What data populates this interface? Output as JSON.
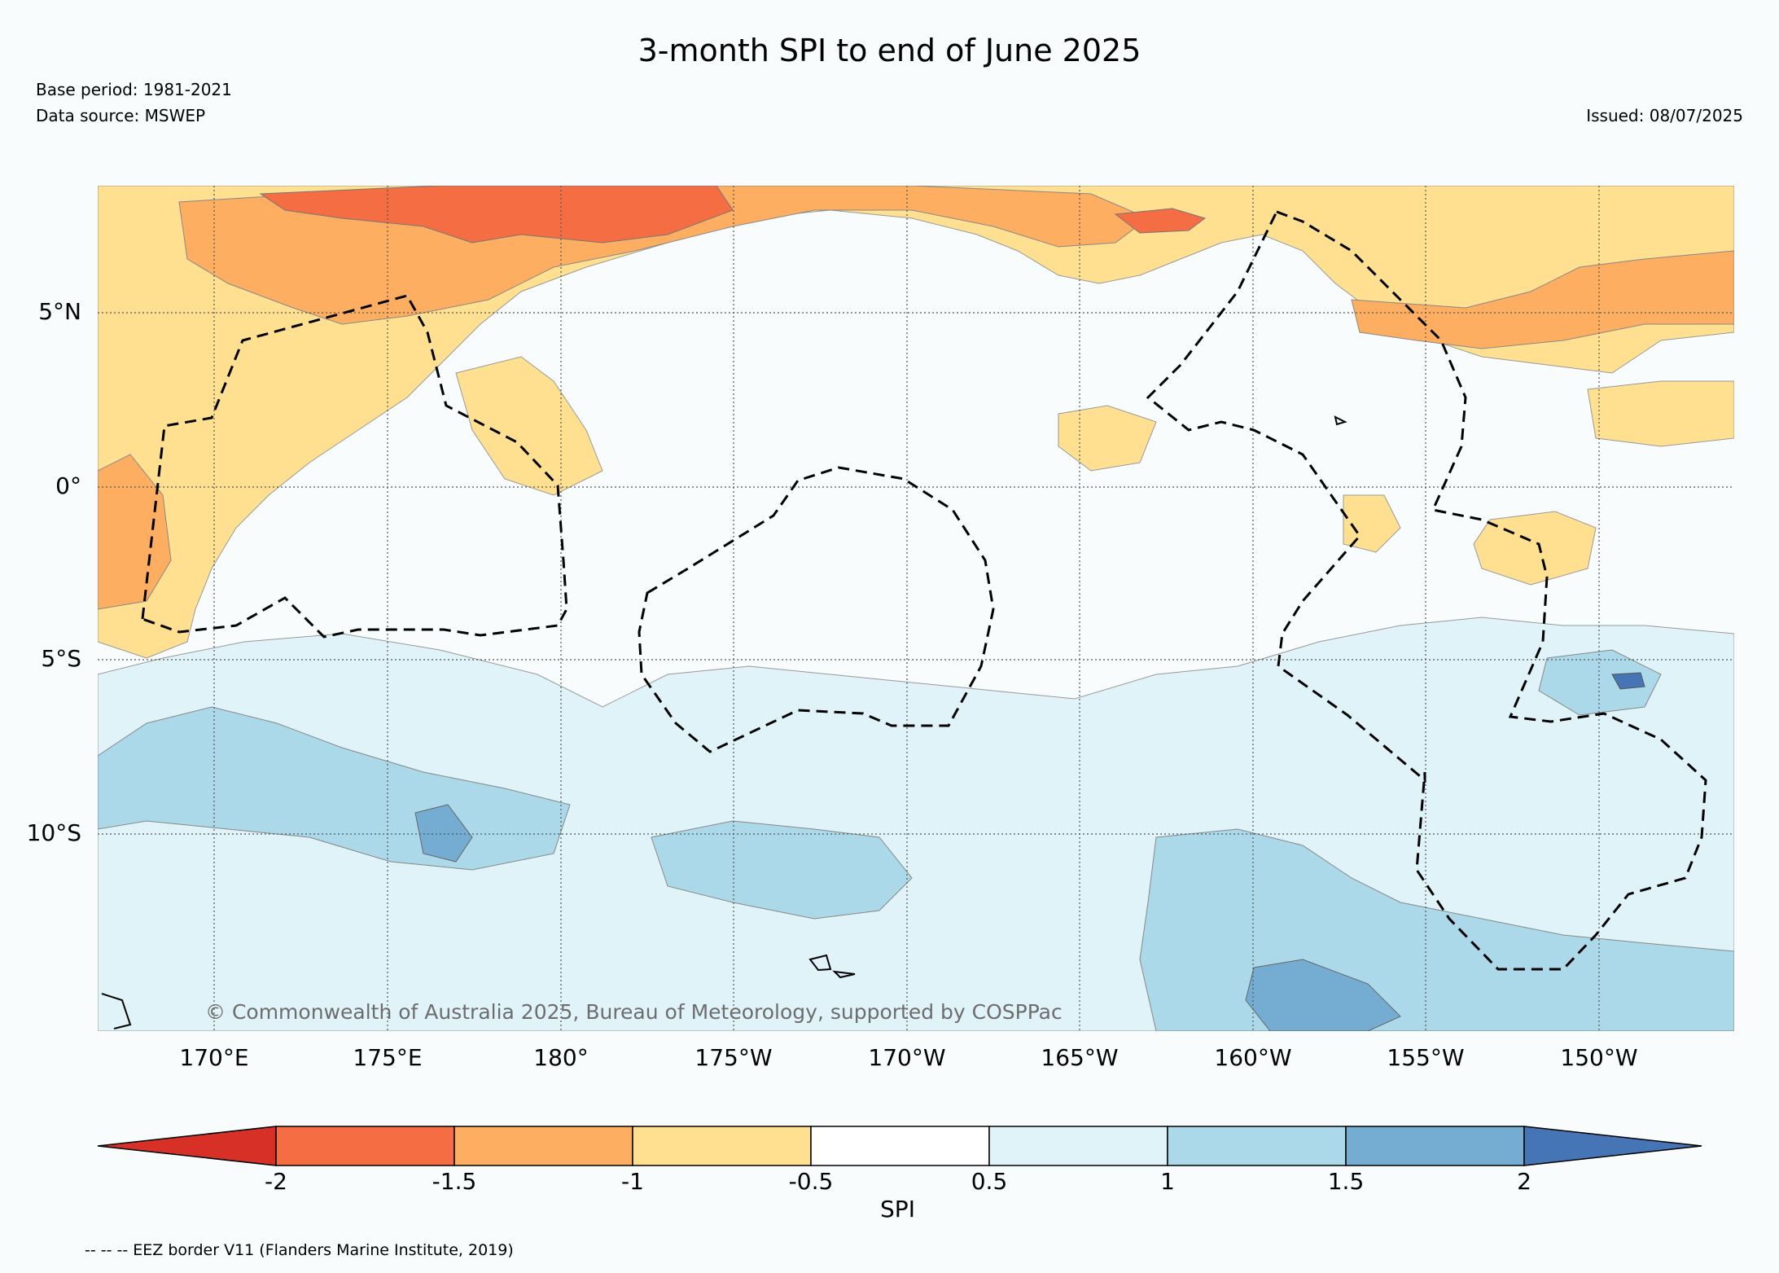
{
  "title": "3-month SPI to end of June 2025",
  "base_period": "Base period: 1981-2021",
  "data_source": "Data source: MSWEP",
  "issued": "Issued: 08/07/2025",
  "copyright": "© Commonwealth of Australia 2025, Bureau of Meteorology, supported by COSPPac",
  "lat_labels": [
    "5°N",
    "0°",
    "5°S",
    "10°S"
  ],
  "lon_labels": [
    "170°E",
    "175°E",
    "180°",
    "175°W",
    "170°W",
    "165°W",
    "160°W",
    "155°W",
    "150°W"
  ],
  "colorbar": {
    "label": "SPI",
    "ticks": [
      "-2",
      "-1.5",
      "-1",
      "-0.5",
      "0.5",
      "1",
      "1.5",
      "2"
    ],
    "colors": [
      "#d73027",
      "#f46d43",
      "#fdae61",
      "#fee090",
      "#ffffff",
      "#e0f3f8",
      "#abd9e9",
      "#74add1",
      "#4575b4"
    ]
  },
  "legend_note": "-- -- -- EEZ border V11 (Flanders Marine Institute, 2019)"
}
